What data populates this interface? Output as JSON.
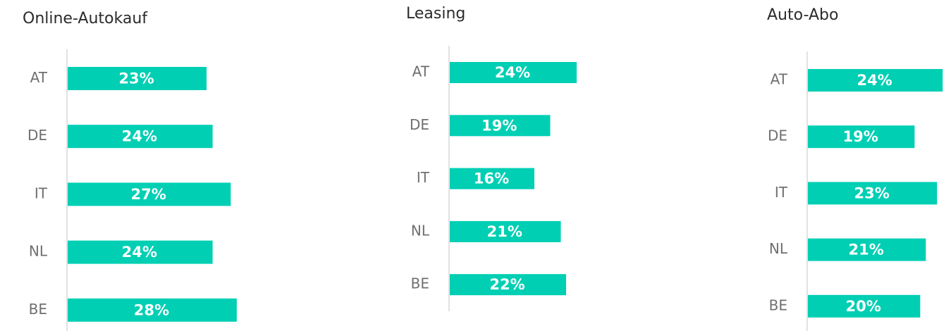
{
  "chart_data": [
    {
      "type": "bar",
      "title": "Online-Autokauf",
      "categories": [
        "AT",
        "DE",
        "IT",
        "NL",
        "BE"
      ],
      "values": [
        23,
        24,
        27,
        24,
        28
      ],
      "value_labels": [
        "23%",
        "24%",
        "27%",
        "24%",
        "28%"
      ],
      "color": "#00cfb4",
      "xlim": [
        0,
        30
      ]
    },
    {
      "type": "bar",
      "title": "Leasing",
      "categories": [
        "AT",
        "DE",
        "IT",
        "NL",
        "BE"
      ],
      "values": [
        24,
        19,
        16,
        21,
        22
      ],
      "value_labels": [
        "24%",
        "19%",
        "16%",
        "21%",
        "22%"
      ],
      "color": "#00cfb4",
      "xlim": [
        0,
        30
      ]
    },
    {
      "type": "bar",
      "title": "Auto-Abo",
      "categories": [
        "AT",
        "DE",
        "IT",
        "NL",
        "BE"
      ],
      "values": [
        24,
        19,
        23,
        21,
        20
      ],
      "value_labels": [
        "24%",
        "19%",
        "23%",
        "21%",
        "20%"
      ],
      "color": "#00cfb4",
      "xlim": [
        0,
        30
      ]
    }
  ]
}
